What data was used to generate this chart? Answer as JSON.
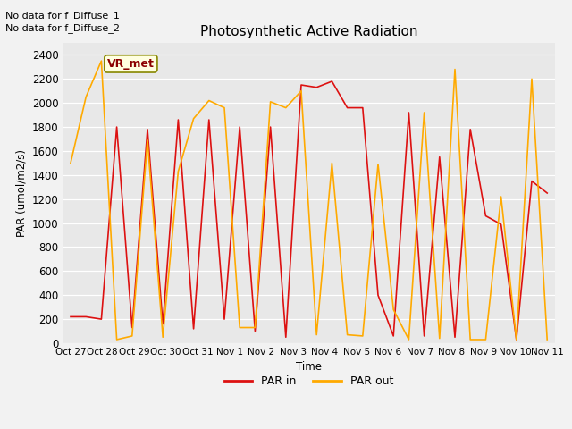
{
  "title": "Photosynthetic Active Radiation",
  "ylabel": "PAR (umol/m2/s)",
  "xlabel": "Time",
  "fig_bg_color": "#f2f2f2",
  "plot_bg_color": "#e8e8e8",
  "annotations": [
    "No data for f_Diffuse_1",
    "No data for f_Diffuse_2"
  ],
  "vr_met_label": "VR_met",
  "legend_labels": [
    "PAR in",
    "PAR out"
  ],
  "legend_colors": [
    "#dd1111",
    "#ffaa00"
  ],
  "ylim": [
    0,
    2500
  ],
  "x_tick_labels": [
    "Oct 27",
    "Oct 28",
    "Oct 29",
    "Oct 30",
    "Oct 31",
    "Nov 1",
    "Nov 2",
    "Nov 3",
    "Nov 4",
    "Nov 5",
    "Nov 6",
    "Nov 7",
    "Nov 8",
    "Nov 9",
    "Nov 10",
    "Nov 11"
  ],
  "par_in_x": [
    0,
    1,
    2,
    3,
    4,
    5,
    6,
    7,
    8,
    9,
    10,
    11,
    12,
    13,
    14,
    15,
    16,
    17,
    18,
    19,
    20,
    21,
    22,
    23,
    24,
    25,
    26,
    27,
    28,
    29,
    30,
    31
  ],
  "par_in_y": [
    220,
    220,
    200,
    1800,
    130,
    1780,
    160,
    1860,
    120,
    1860,
    200,
    1800,
    100,
    1800,
    50,
    2150,
    2130,
    2180,
    1960,
    1960,
    400,
    60,
    1920,
    60,
    1550,
    50,
    1780,
    1060,
    990,
    30,
    1350,
    1250
  ],
  "par_out_x": [
    0,
    1,
    2,
    3,
    4,
    5,
    6,
    7,
    8,
    9,
    10,
    11,
    12,
    13,
    14,
    15,
    16,
    17,
    18,
    19,
    20,
    21,
    22,
    23,
    24,
    25,
    26,
    27,
    28,
    29,
    30,
    31
  ],
  "par_out_y": [
    1500,
    2050,
    2350,
    30,
    60,
    1690,
    50,
    1430,
    1870,
    2020,
    1960,
    130,
    130,
    2010,
    1960,
    2100,
    70,
    1500,
    70,
    60,
    1490,
    280,
    30,
    1920,
    40,
    2280,
    30,
    30,
    1220,
    30,
    2200,
    30
  ]
}
